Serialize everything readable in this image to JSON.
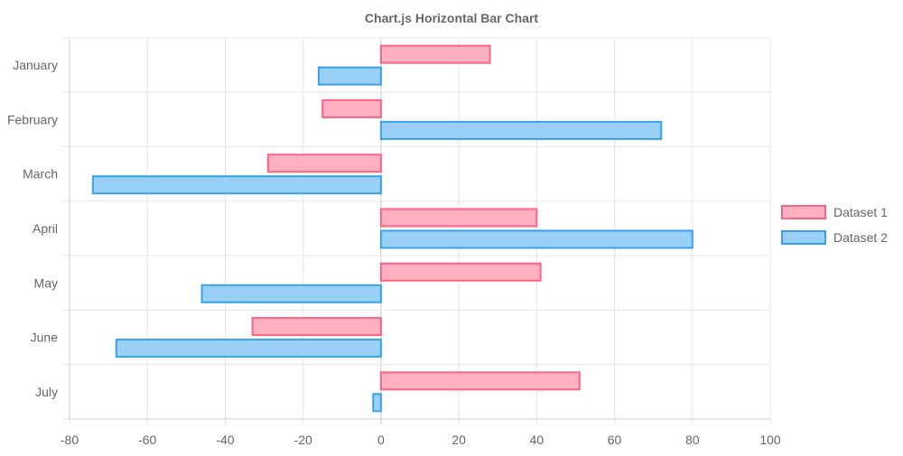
{
  "chart_data": {
    "type": "bar",
    "orientation": "horizontal",
    "title": "Chart.js Horizontal Bar Chart",
    "xlabel": "",
    "ylabel": "",
    "categories": [
      "January",
      "February",
      "March",
      "April",
      "May",
      "June",
      "July"
    ],
    "series": [
      {
        "name": "Dataset 1",
        "values": [
          28,
          -15,
          -29,
          40,
          41,
          -33,
          51
        ],
        "fill_color": "#FFB1C1",
        "border_color": "#FF6384"
      },
      {
        "name": "Dataset 2",
        "values": [
          -16,
          72,
          -74,
          80,
          -46,
          -68,
          -2
        ],
        "fill_color": "#9AD0F5",
        "border_color": "#36A2EB"
      }
    ],
    "xlim": [
      -80,
      100
    ],
    "x_ticks": [
      "-80",
      "-60",
      "-40",
      "-20",
      "0",
      "20",
      "40",
      "60",
      "80",
      "100"
    ],
    "grid": true,
    "legend_position": "right"
  }
}
